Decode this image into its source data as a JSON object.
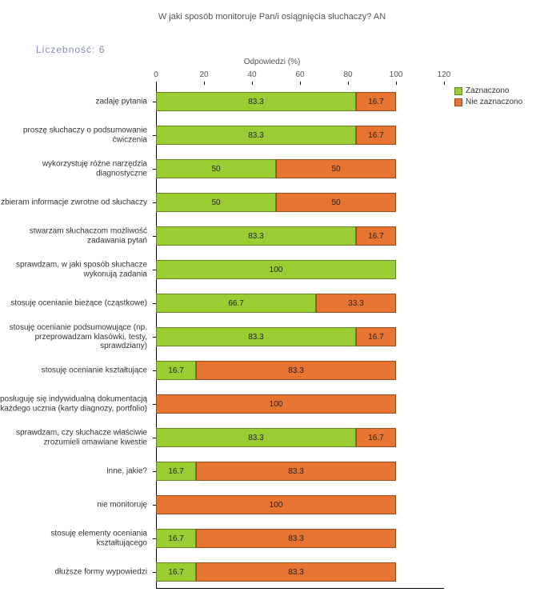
{
  "chart": {
    "type": "stacked-bar-horizontal",
    "title": "W jaki sposób monitoruje Pan/i osiągnięcia słuchaczy?  AN",
    "count_label": "Liczebność: 6",
    "axis_label": "Odpowiedzi (%)",
    "xlim": [
      0,
      120
    ],
    "xticks": [
      0,
      20,
      40,
      60,
      80,
      100,
      120
    ],
    "colors": {
      "checked": "#9acd32",
      "unchecked": "#e87431",
      "text": "#333333",
      "count_label": "#7f8fb0",
      "axis": "#000000"
    },
    "legend": [
      {
        "label": "Zaznaczono",
        "key": "checked"
      },
      {
        "label": "Nie zaznaczono",
        "key": "unchecked"
      }
    ],
    "rows": [
      {
        "label": "zadaję pytania",
        "checked": 83.3,
        "unchecked": 16.7
      },
      {
        "label": "proszę słuchaczy o podsumowanie ćwiczenia",
        "checked": 83.3,
        "unchecked": 16.7
      },
      {
        "label": "wykorzystuję różne narzędzia diagnostyczne",
        "checked": 50,
        "unchecked": 50
      },
      {
        "label": "zbieram informacje zwrotne od słuchaczy",
        "checked": 50,
        "unchecked": 50
      },
      {
        "label": "stwarzam słuchaczom możliwość zadawania pytań",
        "checked": 83.3,
        "unchecked": 16.7
      },
      {
        "label": "sprawdzam, w jaki sposób słuchacze wykonują zadania",
        "checked": 100,
        "unchecked": 0
      },
      {
        "label": "stosuję ocenianie bieżące (cząstkowe)",
        "checked": 66.7,
        "unchecked": 33.3
      },
      {
        "label": "stosuję ocenianie podsumowujące (np. przeprowadzam klasówki, testy, sprawdziany)",
        "checked": 83.3,
        "unchecked": 16.7
      },
      {
        "label": "stosuję ocenianie kształtujące",
        "checked": 16.7,
        "unchecked": 83.3
      },
      {
        "label": "posługuję się indywidualną dokumentacją każdego ucznia (karty diagnozy, portfolio)",
        "checked": 0,
        "unchecked": 100
      },
      {
        "label": "sprawdzam, czy słuchacze właściwie zrozumieli omawiane kwestie",
        "checked": 83.3,
        "unchecked": 16.7
      },
      {
        "label": "inne, jakie?",
        "checked": 16.7,
        "unchecked": 83.3
      },
      {
        "label": "nie monitoruję",
        "checked": 0,
        "unchecked": 100
      },
      {
        "label": "stosuję elementy oceniania kształtującego",
        "checked": 16.7,
        "unchecked": 83.3
      },
      {
        "label": "dłuższe formy wypowiedzi",
        "checked": 16.7,
        "unchecked": 83.3
      }
    ]
  }
}
